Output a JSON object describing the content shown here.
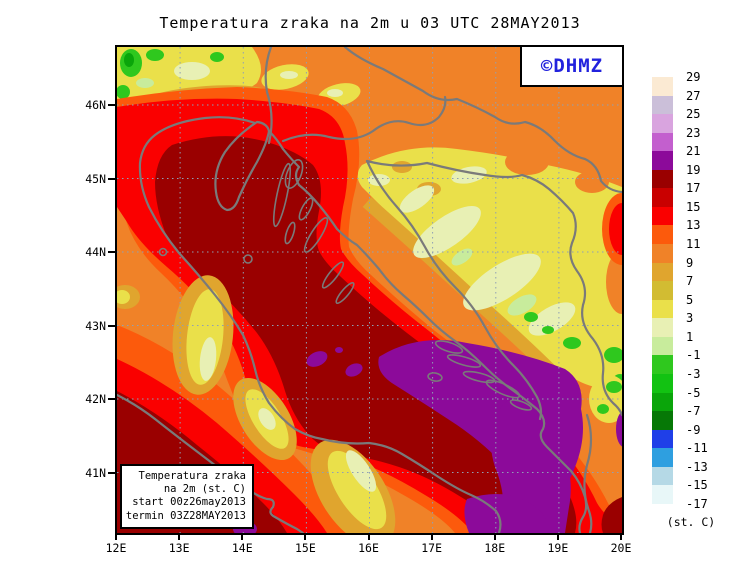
{
  "title": "Temperatura zraka na 2m u 03 UTC 28MAY2013",
  "logo": {
    "label": "©DHMZ",
    "color": "#2222DD"
  },
  "info_box": {
    "lines": [
      "Temperatura zraka",
      "na 2m (st. C)",
      "start 00z26may2013",
      "termin 03Z28MAY2013"
    ]
  },
  "axes": {
    "x_ticks": [
      "12E",
      "13E",
      "14E",
      "15E",
      "16E",
      "17E",
      "18E",
      "19E",
      "20E"
    ],
    "y_ticks": [
      "46N",
      "45N",
      "44N",
      "43N",
      "42N",
      "41N"
    ]
  },
  "colorbar": {
    "unit": "(st. C)",
    "boundary_labels": [
      "29",
      "27",
      "25",
      "23",
      "21",
      "19",
      "17",
      "15",
      "13",
      "11",
      "9",
      "7",
      "5",
      "3",
      "1",
      "-1",
      "-3",
      "-5",
      "-7",
      "-9",
      "-11",
      "-13",
      "-15",
      "-17"
    ],
    "cell_colors": [
      "#FBEAD3",
      "#CBBFD9",
      "#D9A4DF",
      "#C35FCE",
      "#8C0A9A",
      "#9A0000",
      "#C90000",
      "#FA0000",
      "#FC5A0C",
      "#F08228",
      "#E0A52E",
      "#D2BC32",
      "#EAE04A",
      "#E8F0B4",
      "#C8EC9C",
      "#2FC81E",
      "#12C212",
      "#0AA50A",
      "#067806",
      "#1F3FE8",
      "#2E9FE0",
      "#B5D9E6",
      "#E8F7F8"
    ]
  },
  "chart_data": {
    "type": "heatmap",
    "title": "Temperatura zraka na 2m u 03 UTC 28MAY2013",
    "x_range": [
      "12E",
      "20E"
    ],
    "y_range": [
      "41N",
      "46N"
    ],
    "legend_boundaries_degC": [
      29,
      27,
      25,
      23,
      21,
      19,
      17,
      15,
      13,
      11,
      9,
      7,
      5,
      3,
      1,
      -1,
      -3,
      -5,
      -7,
      -9,
      -11,
      -13,
      -15,
      -17
    ],
    "legend_position": "right",
    "grid": "dashed graticule every 1 degree",
    "units": "(st. C)",
    "field_summary": [
      {
        "area": "Adriatic Sea (diagonal band)",
        "value_degC": "17-19",
        "color": "#9A0000"
      },
      {
        "area": "Southern Adriatic / SE corner",
        "value_degC": "19-21",
        "color": "#8C0A9A"
      },
      {
        "area": "Coastal rim both sides of Adriatic",
        "value_degC": "13-17",
        "color": "#FA0000"
      },
      {
        "area": "Bosnia / NE inland",
        "value_degC": "3-9",
        "color": "#EAE04A"
      },
      {
        "area": "Alps top-left corner",
        "value_degC": "-3-1",
        "color": "#2FC81E"
      },
      {
        "area": "Pannonian north and background",
        "value_degC": "9-13",
        "color": "#F08228"
      }
    ]
  },
  "colors": {
    "coastline": "#7A7A7A",
    "grid": "#8FA0B5",
    "frame": "#000000",
    "background": "#FFFFFF"
  }
}
